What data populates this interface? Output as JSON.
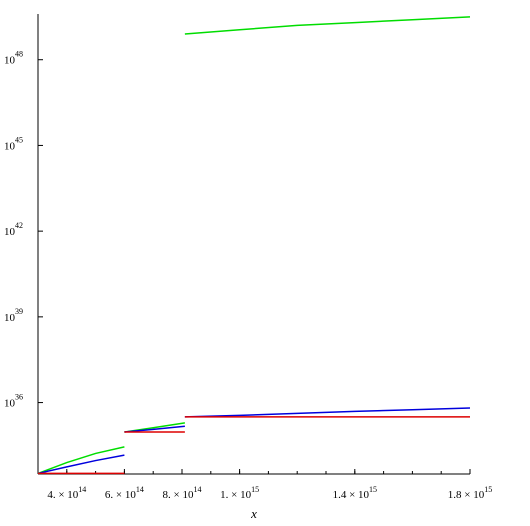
{
  "chart_data": {
    "type": "line",
    "title": "",
    "xlabel": "x",
    "ylabel": "",
    "x_scale": "linear",
    "y_scale": "log",
    "xlim": [
      300000000000000,
      1800000000000000
    ],
    "ylim_log10": [
      33.5,
      49.6
    ],
    "grid": false,
    "legend": "none",
    "x_ticks": [
      {
        "value": 400000000000000,
        "mantissa": "4. × 10",
        "exp": "14"
      },
      {
        "value": 600000000000000,
        "mantissa": "6. × 10",
        "exp": "14"
      },
      {
        "value": 800000000000000,
        "mantissa": "8. × 10",
        "exp": "14"
      },
      {
        "value": 1000000000000000,
        "mantissa": "1. × 10",
        "exp": "15"
      },
      {
        "value": 1400000000000000,
        "mantissa": "1.4 × 10",
        "exp": "15"
      },
      {
        "value": 1800000000000000,
        "mantissa": "1.8 × 10",
        "exp": "15"
      }
    ],
    "y_ticks": [
      {
        "log10": 36,
        "base": "10",
        "exp": "36"
      },
      {
        "log10": 39,
        "base": "10",
        "exp": "39"
      },
      {
        "log10": 42,
        "base": "10",
        "exp": "42"
      },
      {
        "log10": 45,
        "base": "10",
        "exp": "45"
      },
      {
        "log10": 48,
        "base": "10",
        "exp": "48"
      }
    ],
    "series": [
      {
        "color": "#00dd00",
        "segments": [
          {
            "x": [
              300000000000000,
              400000000000000,
              500000000000000,
              600000000000000
            ],
            "log10_y": [
              33.52,
              33.9,
              34.22,
              34.45
            ]
          },
          {
            "x": [
              600000000000000,
              700000000000000,
              810000000000000
            ],
            "log10_y": [
              34.97,
              35.12,
              35.29
            ]
          },
          {
            "x": [
              810000000000000,
              1000000000000000,
              1200000000000000,
              1400000000000000,
              1600000000000000,
              1800000000000000
            ],
            "log10_y": [
              48.9,
              49.05,
              49.2,
              49.3,
              49.4,
              49.5
            ]
          }
        ]
      },
      {
        "color": "#0000dd",
        "segments": [
          {
            "x": [
              300000000000000,
              400000000000000,
              500000000000000,
              600000000000000
            ],
            "log10_y": [
              33.52,
              33.75,
              33.97,
              34.16
            ]
          },
          {
            "x": [
              600000000000000,
              700000000000000,
              810000000000000
            ],
            "log10_y": [
              34.97,
              35.06,
              35.17
            ]
          },
          {
            "x": [
              810000000000000,
              1000000000000000,
              1200000000000000,
              1400000000000000,
              1600000000000000,
              1800000000000000
            ],
            "log10_y": [
              35.5,
              35.55,
              35.62,
              35.69,
              35.75,
              35.81
            ]
          }
        ]
      },
      {
        "color": "#dd0000",
        "segments": [
          {
            "x": [
              300000000000000,
              600000000000000
            ],
            "log10_y": [
              33.52,
              33.52
            ]
          },
          {
            "x": [
              600000000000000,
              810000000000000
            ],
            "log10_y": [
              34.97,
              34.97
            ]
          },
          {
            "x": [
              810000000000000,
              1800000000000000
            ],
            "log10_y": [
              35.5,
              35.5
            ]
          }
        ]
      }
    ]
  }
}
